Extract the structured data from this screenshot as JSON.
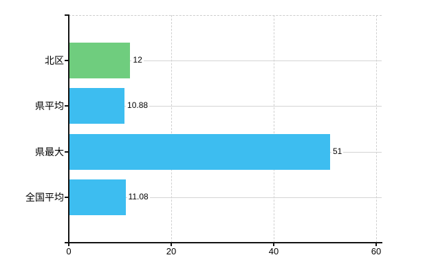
{
  "chart": {
    "background": "#ffffff",
    "axis_color": "#111111",
    "gridline_solid_color": "#d4d4d4",
    "gridline_dashed_color": "#cfcfcf",
    "text_color": "#000000"
  },
  "chart_data": {
    "type": "bar",
    "orientation": "horizontal",
    "title": "",
    "xlabel": "",
    "ylabel": "",
    "categories": [
      "北区",
      "県平均",
      "県最大",
      "全国平均"
    ],
    "values": [
      12,
      10.88,
      51,
      11.08
    ],
    "value_labels": [
      "12",
      "10.88",
      "51",
      "11.08"
    ],
    "bar_colors": [
      "#6fcd7e",
      "#3dbdf0",
      "#3dbdf0",
      "#3dbdf0"
    ],
    "x_axis": {
      "min": 0,
      "max": 60,
      "ticks": [
        0,
        20,
        40,
        60
      ],
      "tick_labels": [
        "0",
        "20",
        "40",
        "60"
      ]
    },
    "grid": {
      "horizontal_category_lines": "solid",
      "vertical_value_lines": "dashed",
      "top_border": "dashed"
    },
    "legend_visible": false
  }
}
